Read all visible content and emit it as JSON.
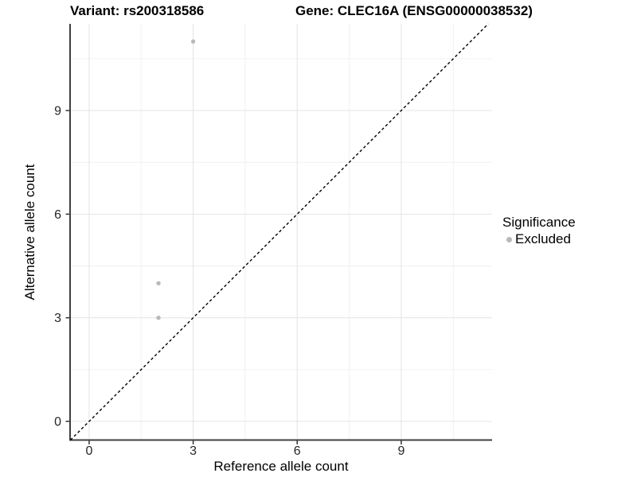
{
  "header": {
    "title_left": "Variant: rs200318586",
    "title_right": "Gene: CLEC16A (ENSG00000038532)"
  },
  "chart_data": {
    "type": "scatter",
    "xlabel": "Reference allele count",
    "ylabel": "Alternative allele count",
    "xticks": [
      0,
      3,
      6,
      9
    ],
    "yticks": [
      0,
      3,
      6,
      9
    ],
    "xlim": [
      -0.55,
      11.62
    ],
    "ylim": [
      -0.54,
      11.51
    ],
    "minor_gridlines_x": [
      1.5,
      4.5,
      7.5,
      10.5
    ],
    "minor_gridlines_y": [
      1.5,
      4.5,
      7.5,
      10.5
    ],
    "grid": "major and minor, light grey on white panel",
    "series": [
      {
        "name": "Excluded",
        "color": "#b9b9b9",
        "points": [
          [
            2,
            3
          ],
          [
            2,
            4
          ],
          [
            3,
            11
          ]
        ]
      }
    ],
    "reference_line": {
      "type": "identity",
      "style": "dashed",
      "color": "#000000"
    },
    "legend": {
      "title": "Significance",
      "position": "right",
      "items": [
        {
          "label": "Excluded",
          "color": "#b9b9b9"
        }
      ]
    }
  }
}
